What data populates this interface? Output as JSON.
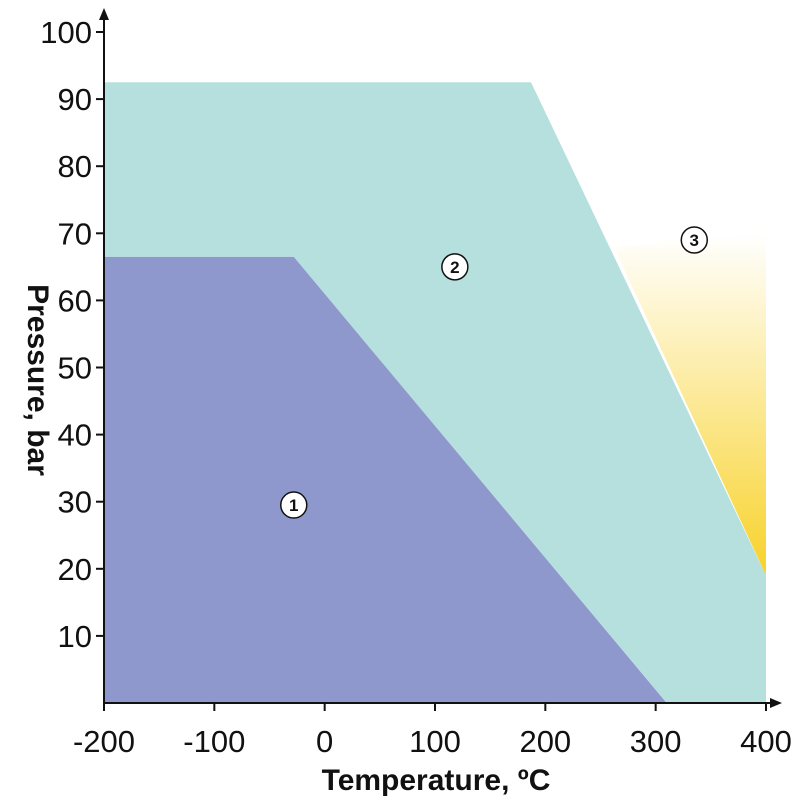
{
  "chart_data": {
    "type": "area",
    "title": "",
    "xlabel": "Temperature, ºC",
    "ylabel": "Pressure, bar",
    "xlim": [
      -200,
      400
    ],
    "ylim": [
      0,
      100
    ],
    "x_ticks": [
      -200,
      -100,
      0,
      100,
      200,
      300,
      400
    ],
    "x_tick_labels": [
      "-200",
      "-100",
      "0",
      "100",
      "200",
      "300",
      "400"
    ],
    "y_ticks": [
      10,
      20,
      30,
      40,
      50,
      60,
      70,
      80,
      90,
      100
    ],
    "y_tick_labels": [
      "10",
      "20",
      "30",
      "40",
      "50",
      "60",
      "70",
      "80",
      "90",
      "100"
    ],
    "grid": false,
    "regions": [
      {
        "label": "1",
        "name": "region-1",
        "color": "#8f98cc",
        "boundary": [
          [
            -200,
            0
          ],
          [
            -200,
            66.5
          ],
          [
            -28,
            66.5
          ],
          [
            310,
            0
          ]
        ],
        "label_at": [
          -28,
          29.5
        ]
      },
      {
        "label": "2",
        "name": "region-2",
        "color": "#b5e0dd",
        "boundary": [
          [
            -200,
            66.5
          ],
          [
            -200,
            92.5
          ],
          [
            187,
            92.5
          ],
          [
            400,
            19
          ],
          [
            400,
            0
          ],
          [
            310,
            0
          ],
          [
            -28,
            66.5
          ]
        ],
        "label_at": [
          118,
          65
        ]
      },
      {
        "label": "3",
        "name": "region-3",
        "color_top": "#ffffff",
        "color_bottom": "#f8d22a",
        "boundary": [
          [
            262,
            68
          ],
          [
            400,
            70
          ],
          [
            400,
            19
          ]
        ],
        "label_at": [
          335,
          69
        ]
      }
    ]
  }
}
